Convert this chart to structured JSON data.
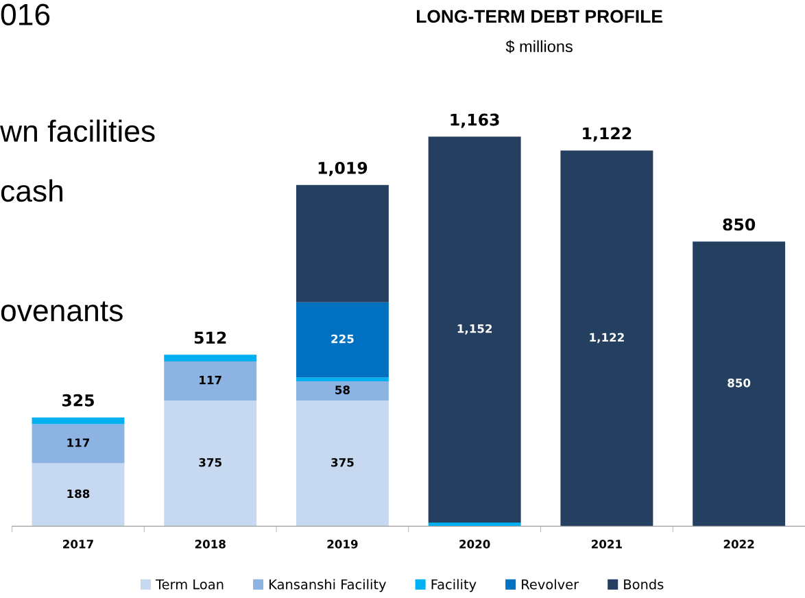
{
  "chart_data": {
    "type": "bar",
    "title": "LONG-TERM DEBT PROFILE",
    "subtitle": "$ millions",
    "stacked": true,
    "categories": [
      "2017",
      "2018",
      "2019",
      "2020",
      "2021",
      "2022"
    ],
    "series": [
      {
        "name": "Term Loan",
        "color": "#c6d9f0",
        "values": [
          188,
          375,
          375,
          null,
          null,
          null
        ],
        "value_labels": [
          "188",
          "375",
          "375",
          null,
          null,
          null
        ]
      },
      {
        "name": "Kansanshi Facility",
        "color": "#8db3e2",
        "values": [
          117,
          117,
          58,
          null,
          null,
          null
        ],
        "value_labels": [
          "117",
          "117",
          "58",
          null,
          null,
          null
        ]
      },
      {
        "name": "Facility",
        "color": "#00b0f0",
        "values": [
          20,
          20,
          11,
          11,
          null,
          null
        ],
        "value_labels": [
          null,
          null,
          null,
          null,
          null,
          null
        ]
      },
      {
        "name": "Revolver",
        "color": "#0070c0",
        "values": [
          null,
          null,
          225,
          null,
          null,
          null
        ],
        "value_labels": [
          null,
          null,
          "225",
          null,
          null,
          null
        ]
      },
      {
        "name": "Bonds",
        "color": "#243f60",
        "values": [
          null,
          null,
          350,
          1152,
          1122,
          850
        ],
        "value_labels": [
          null,
          null,
          null,
          "1,152",
          "1,122",
          "850"
        ]
      }
    ],
    "totals": [
      "325",
      "512",
      "1,019",
      "1,163",
      "1,122",
      "850"
    ],
    "legend": "bottom",
    "grid": false,
    "annotations": [
      "016",
      "wn facilities",
      "cash",
      "ovenants"
    ]
  }
}
